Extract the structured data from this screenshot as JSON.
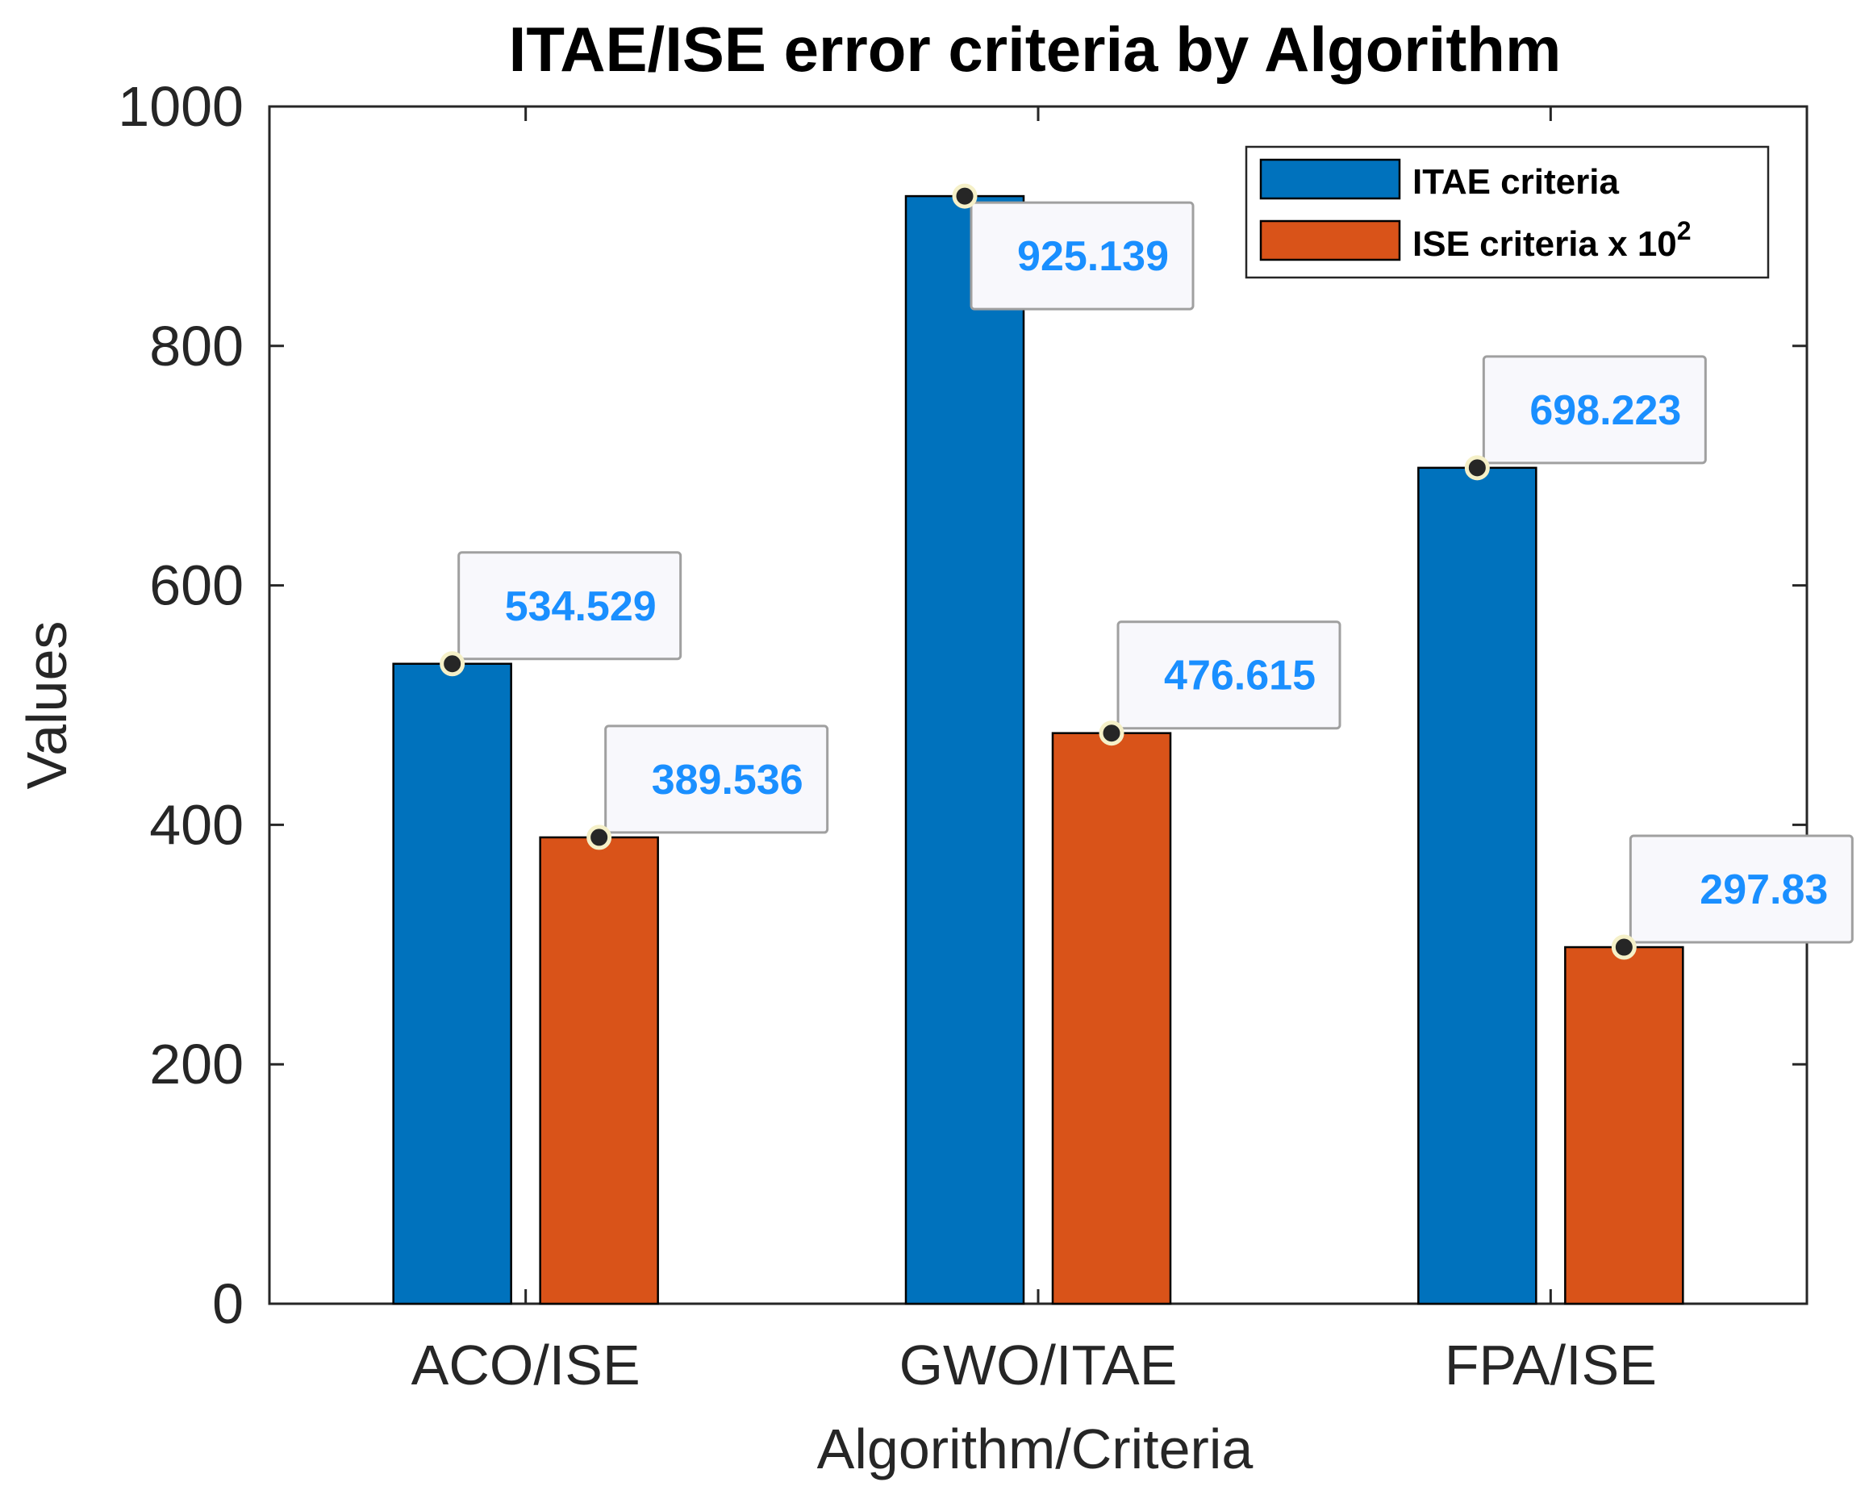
{
  "chart_data": {
    "type": "bar",
    "title": "ITAE/ISE error criteria by Algorithm",
    "xlabel": "Algorithm/Criteria",
    "ylabel": "Values",
    "categories": [
      "ACO/ISE",
      "GWO/ITAE",
      "FPA/ISE"
    ],
    "series": [
      {
        "name": "ITAE criteria",
        "color": "#0072bd",
        "values": [
          534.529,
          925.139,
          698.223
        ]
      },
      {
        "name": "ISE criteria x 10",
        "name_superscript": "2",
        "color": "#d95319",
        "values": [
          389.536,
          476.615,
          297.83
        ]
      }
    ],
    "data_labels": [
      [
        "534.529",
        "925.139",
        "698.223"
      ],
      [
        "389.536",
        "476.615",
        "297.83"
      ]
    ],
    "ylim": [
      0,
      1000
    ],
    "yticks": [
      0,
      200,
      400,
      600,
      800,
      1000
    ],
    "grid": false,
    "legend_position": "top-right",
    "label_color": "#1a8fff"
  }
}
